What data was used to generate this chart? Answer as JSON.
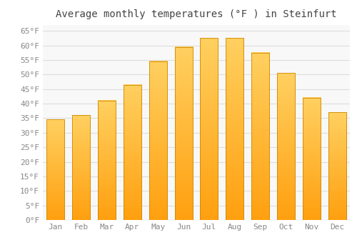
{
  "title": "Average monthly temperatures (°F ) in Steinfurt",
  "months": [
    "Jan",
    "Feb",
    "Mar",
    "Apr",
    "May",
    "Jun",
    "Jul",
    "Aug",
    "Sep",
    "Oct",
    "Nov",
    "Dec"
  ],
  "values": [
    34.5,
    36.0,
    41.0,
    46.5,
    54.5,
    59.5,
    62.5,
    62.5,
    57.5,
    50.5,
    42.0,
    37.0
  ],
  "bar_color_top": "#FFD060",
  "bar_color_bottom": "#FFA010",
  "bar_edge_color": "#CC8800",
  "background_color": "#FFFFFF",
  "plot_bg_color": "#F8F8F8",
  "grid_color": "#DDDDDD",
  "text_color": "#888888",
  "title_color": "#444444",
  "ylim": [
    0,
    67
  ],
  "yticks": [
    0,
    5,
    10,
    15,
    20,
    25,
    30,
    35,
    40,
    45,
    50,
    55,
    60,
    65
  ],
  "title_fontsize": 10,
  "tick_fontsize": 8,
  "bar_width": 0.7
}
